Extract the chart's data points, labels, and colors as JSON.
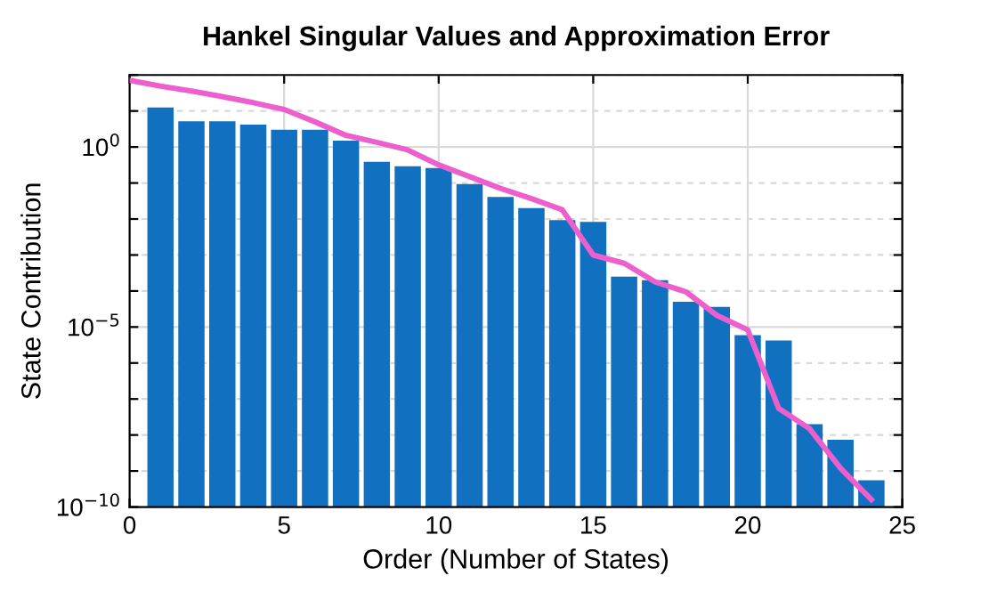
{
  "chart_data": {
    "type": "bar",
    "title": "Hankel Singular Values and Approximation Error",
    "xlabel": "Order (Number of States)",
    "ylabel": "State Contribution",
    "series": [
      {
        "color": "#1170bf",
        "x": [
          1,
          2,
          3,
          4,
          5,
          6,
          7,
          8,
          9,
          10,
          11,
          12,
          13,
          14,
          15,
          16,
          17,
          18,
          19,
          20,
          21,
          22,
          23,
          24
        ],
        "values": [
          12.6,
          5.2,
          5.2,
          4.2,
          3.0,
          3.0,
          1.5,
          0.39,
          0.29,
          0.26,
          0.093,
          0.041,
          0.02,
          0.0093,
          0.0083,
          0.00025,
          0.0002,
          5e-05,
          3.6e-05,
          5.9e-06,
          4.2e-06,
          2e-08,
          7.4e-09,
          5.5e-10
        ]
      },
      {
        "type": "line",
        "color": "#ee5fce",
        "x": [
          0,
          1,
          2,
          3,
          4,
          5,
          6,
          7,
          8,
          9,
          10,
          11,
          12,
          13,
          14,
          15,
          16,
          17,
          18,
          19,
          20,
          21,
          22,
          23,
          24
        ],
        "values": [
          71,
          49,
          36,
          25,
          17,
          11,
          5.0,
          2.1,
          1.35,
          0.83,
          0.32,
          0.15,
          0.071,
          0.037,
          0.018,
          0.001,
          0.00059,
          0.00018,
          9.5e-05,
          2.1e-05,
          8.3e-06,
          5.5e-08,
          1.5e-08,
          1.2e-09,
          1.6e-10
        ]
      }
    ],
    "log": "y",
    "xlim": [
      0,
      25
    ],
    "xticks": [
      0,
      5,
      10,
      15,
      20,
      25
    ],
    "ylim": [
      1e-10,
      100
    ],
    "yticks": [
      {
        "value": 1e-10,
        "label": "10$^{−10}$"
      },
      {
        "value": 1e-09,
        "label": null
      },
      {
        "value": 1e-08,
        "label": null
      },
      {
        "value": 1e-07,
        "label": null
      },
      {
        "value": 1e-06,
        "label": null
      },
      {
        "value": 1e-05,
        "label": "10$^{−5}$"
      },
      {
        "value": 0.0001,
        "label": null
      },
      {
        "value": 0.001,
        "label": null
      },
      {
        "value": 0.01,
        "label": null
      },
      {
        "value": 0.1,
        "label": null
      },
      {
        "value": 1,
        "label": "10$^{0}$"
      },
      {
        "value": 10,
        "label": null
      },
      {
        "value": 100,
        "label": null
      }
    ],
    "grid": true
  }
}
